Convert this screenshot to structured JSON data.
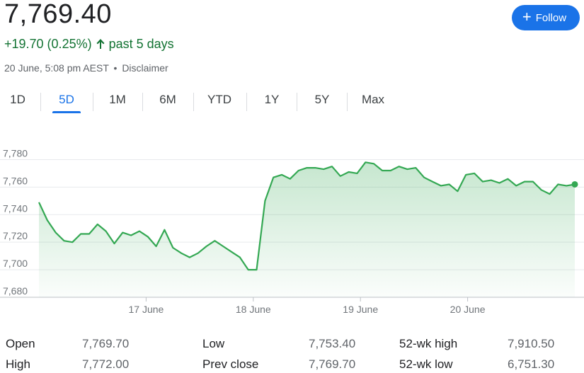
{
  "quote": {
    "price": "7,769.40",
    "change": "+19.70 (0.25%)",
    "period": "past 5 days",
    "timestamp": "20 June, 5:08 pm AEST",
    "separator": "•",
    "disclaimer": "Disclaimer",
    "follow_label": "Follow",
    "accent": "#1a73e8",
    "up_color": "#137333"
  },
  "tabs": [
    {
      "label": "1D",
      "active": false
    },
    {
      "label": "5D",
      "active": true
    },
    {
      "label": "1M",
      "active": false
    },
    {
      "label": "6M",
      "active": false
    },
    {
      "label": "YTD",
      "active": false
    },
    {
      "label": "1Y",
      "active": false
    },
    {
      "label": "5Y",
      "active": false
    },
    {
      "label": "Max",
      "active": false
    }
  ],
  "stats": {
    "open": {
      "label": "Open",
      "value": "7,769.70"
    },
    "high": {
      "label": "High",
      "value": "7,772.00"
    },
    "low": {
      "label": "Low",
      "value": "7,753.40"
    },
    "prev_close": {
      "label": "Prev close",
      "value": "7,769.70"
    },
    "wk52_high": {
      "label": "52-wk high",
      "value": "7,910.50"
    },
    "wk52_low": {
      "label": "52-wk low",
      "value": "6,751.30"
    }
  },
  "chart_data": {
    "type": "area",
    "title": "",
    "line_color": "#34a853",
    "grid": true,
    "ylim": [
      7680,
      7790
    ],
    "y_ticks": [
      7680,
      7700,
      7720,
      7740,
      7760,
      7780
    ],
    "y_tick_labels": [
      "7,680",
      "7,700",
      "7,720",
      "7,740",
      "7,760",
      "7,780"
    ],
    "x_ticks": [
      {
        "label": "17 June",
        "at": 10
      },
      {
        "label": "18 June",
        "at": 20
      },
      {
        "label": "19 June",
        "at": 30
      },
      {
        "label": "20 June",
        "at": 40
      }
    ],
    "x_range": [
      0,
      50
    ],
    "series": [
      {
        "values": [
          7749,
          7736,
          7727,
          7721,
          7720,
          7726,
          7726,
          7733,
          7728,
          7719,
          7727,
          7725,
          7728,
          7724,
          7717,
          7729,
          7716,
          7712,
          7709,
          7712,
          7717,
          7721,
          7717,
          7713,
          7709,
          7700,
          7700,
          7750,
          7767,
          7769,
          7766,
          7772,
          7774,
          7774,
          7773,
          7775,
          7768,
          7771,
          7770,
          7778,
          7777,
          7772,
          7772,
          7775,
          7773,
          7774,
          7767,
          7764,
          7761,
          7762,
          7757,
          7769,
          7770,
          7764,
          7765,
          7763,
          7766,
          7761,
          7764,
          7764,
          7758,
          7755,
          7762,
          7761,
          7762
        ]
      }
    ]
  }
}
